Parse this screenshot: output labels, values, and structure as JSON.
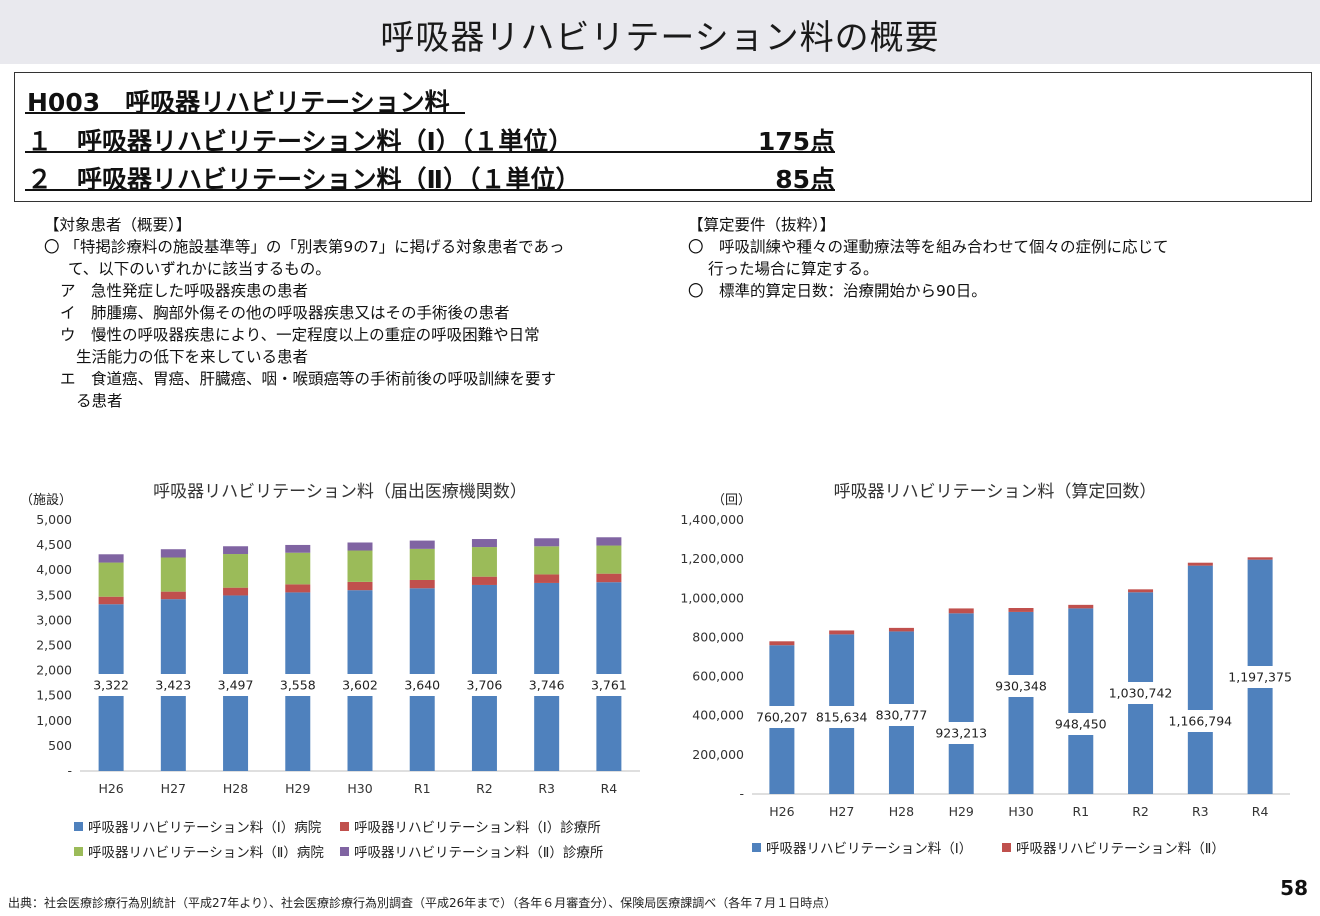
{
  "page": {
    "title": "呼吸器リハビリテーション料の概要",
    "number": "58",
    "footnote": "出典：社会医療診療行為別統計（平成27年より）、社会医療診療行為別調査（平成26年まで）（各年６月審査分）、保険局医療課調べ（各年７月１日時点）"
  },
  "summary": {
    "code_title": "H003　呼吸器リハビリテーション料",
    "item1_label": "１　呼吸器リハビリテーション料（Ⅰ）（１単位）",
    "item1_points": "175点",
    "item2_label": "２　呼吸器リハビリテーション料（Ⅱ）（１単位）",
    "item2_points": "85点"
  },
  "patients": {
    "heading": "【対象患者（概要）】",
    "lines": [
      "〇 「特掲診療料の施設基準等」の「別表第9の7」に掲げる対象患者であっ",
      "て、以下のいずれかに該当するもの。",
      "ア　急性発症した呼吸器疾患の患者",
      "イ　肺腫瘍、胸部外傷その他の呼吸器疾患又はその手術後の患者",
      "ウ　慢性の呼吸器疾患により、一定程度以上の重症の呼吸困難や日常",
      "生活能力の低下を来している患者",
      "エ　食道癌、胃癌、肝臓癌、咽・喉頭癌等の手術前後の呼吸訓練を要す",
      "る患者"
    ]
  },
  "requirements": {
    "heading": "【算定要件（抜粋）】",
    "lines": [
      "〇　呼吸訓練や種々の運動療法等を組み合わせて個々の症例に応じて",
      "行った場合に算定する。",
      "〇　標準的算定日数：治療開始から90日。"
    ]
  },
  "chart_data": [
    {
      "type": "bar",
      "stacked": true,
      "title": "呼吸器リハビリテーション料（届出医療機関数）",
      "ylabel": "（施設）",
      "ylim": [
        0,
        5000
      ],
      "yticks": [
        "-",
        "500",
        "1,000",
        "1,500",
        "2,000",
        "2,500",
        "3,000",
        "3,500",
        "4,000",
        "4,500",
        "5,000"
      ],
      "categories": [
        "H26",
        "H27",
        "H28",
        "H29",
        "H30",
        "R1",
        "R2",
        "R3",
        "R4"
      ],
      "series": [
        {
          "name": "呼吸器リハビリテーション料（Ⅰ）病院",
          "color": "#4f81bd",
          "values": [
            3322,
            3423,
            3497,
            3558,
            3602,
            3640,
            3706,
            3746,
            3761
          ],
          "labels": [
            "3,322",
            "3,423",
            "3,497",
            "3,558",
            "3,602",
            "3,640",
            "3,706",
            "3,746",
            "3,761"
          ]
        },
        {
          "name": "呼吸器リハビリテーション料（Ⅰ）診療所",
          "color": "#c0504d",
          "values": [
            150,
            150,
            155,
            160,
            165,
            165,
            165,
            170,
            170
          ]
        },
        {
          "name": "呼吸器リハビリテーション料（Ⅱ）病院",
          "color": "#9bbb59",
          "values": [
            680,
            680,
            670,
            630,
            625,
            620,
            590,
            560,
            560
          ]
        },
        {
          "name": "呼吸器リハビリテーション料（Ⅱ）診療所",
          "color": "#8064a2",
          "values": [
            165,
            165,
            155,
            155,
            160,
            165,
            160,
            160,
            165
          ]
        }
      ]
    },
    {
      "type": "bar",
      "stacked": true,
      "title": "呼吸器リハビリテーション料（算定回数）",
      "ylabel": "（回）",
      "ylim": [
        0,
        1400000
      ],
      "yticks": [
        "-",
        "200,000",
        "400,000",
        "600,000",
        "800,000",
        "1,000,000",
        "1,200,000",
        "1,400,000"
      ],
      "categories": [
        "H26",
        "H27",
        "H28",
        "H29",
        "H30",
        "R1",
        "R2",
        "R3",
        "R4"
      ],
      "series": [
        {
          "name": "呼吸器リハビリテーション料（Ⅰ）",
          "color": "#4f81bd",
          "values": [
            760207,
            815634,
            830777,
            923213,
            930348,
            948450,
            1030742,
            1166794,
            1197375
          ],
          "labels": [
            "760,207",
            "815,634",
            "830,777",
            "923,213",
            "930,348",
            "948,450",
            "1,030,742",
            "1,166,794",
            "1,197,375"
          ]
        },
        {
          "name": "呼吸器リハビリテーション料（Ⅱ）",
          "color": "#c0504d",
          "values": [
            20000,
            20000,
            18000,
            25000,
            20000,
            18000,
            15000,
            15000,
            12000
          ]
        }
      ]
    }
  ]
}
